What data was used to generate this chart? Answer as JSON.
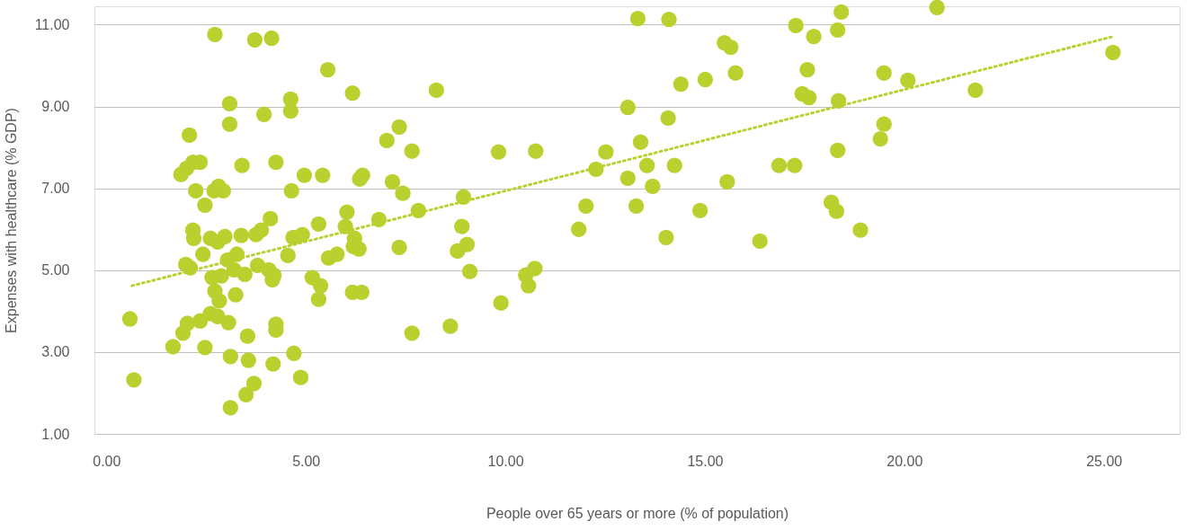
{
  "chart_data": {
    "type": "scatter",
    "xlabel": "People over 65 years or more (% of population)",
    "ylabel": "Expenses with healthcare (% GDP)",
    "xlim": [
      -0.3,
      26.9
    ],
    "ylim": [
      1,
      11.45
    ],
    "xticks": [
      {
        "value": 0,
        "label": "0.00"
      },
      {
        "value": 5,
        "label": "5.00"
      },
      {
        "value": 10,
        "label": "10.00"
      },
      {
        "value": 15,
        "label": "15.00"
      },
      {
        "value": 20,
        "label": "20.00"
      },
      {
        "value": 25,
        "label": "25.00"
      }
    ],
    "yticks": [
      {
        "value": 1,
        "label": "1.00"
      },
      {
        "value": 3,
        "label": "3.00"
      },
      {
        "value": 5,
        "label": "5.00"
      },
      {
        "value": 7,
        "label": "7.00"
      },
      {
        "value": 9,
        "label": "9.00"
      },
      {
        "value": 11,
        "label": "11.00"
      }
    ],
    "grid": "y",
    "series": [
      {
        "marker": "circle",
        "color": "#b9d02e",
        "x": [
          0.59,
          0.69,
          1.67,
          1.92,
          1.87,
          2.01,
          2.08,
          2.17,
          2.35,
          2.24,
          2.17,
          2.19,
          1.99,
          2.1,
          2.03,
          2.35,
          2.47,
          2.42,
          2.47,
          2.61,
          2.7,
          2.72,
          2.81,
          2.93,
          2.79,
          2.97,
          2.65,
          2.72,
          2.88,
          2.83,
          2.61,
          2.79,
          3.06,
          3.09,
          3.09,
          3.04,
          3.2,
          3.27,
          3.38,
          3.4,
          3.47,
          3.24,
          3.11,
          3.11,
          3.54,
          3.56,
          3.5,
          3.72,
          3.7,
          3.75,
          3.88,
          3.79,
          3.95,
          4.07,
          4.14,
          4.11,
          4.16,
          4.2,
          4.25,
          4.25,
          4.25,
          4.18,
          4.55,
          4.62,
          4.62,
          4.64,
          4.68,
          4.91,
          4.96,
          4.7,
          4.87,
          5.16,
          5.32,
          5.37,
          5.32,
          5.42,
          5.55,
          5.57,
          5.78,
          5.99,
          6.03,
          6.17,
          6.17,
          6.22,
          6.19,
          6.33,
          6.35,
          6.42,
          6.4,
          6.83,
          7.03,
          7.17,
          7.34,
          7.34,
          7.43,
          7.66,
          7.66,
          7.82,
          8.27,
          8.62,
          8.8,
          8.91,
          8.95,
          9.04,
          9.11,
          9.83,
          9.89,
          10.51,
          10.58,
          10.74,
          10.76,
          11.84,
          12.02,
          12.27,
          12.52,
          13.07,
          13.07,
          13.28,
          13.32,
          13.39,
          13.55,
          13.69,
          14.03,
          14.08,
          14.1,
          14.24,
          14.4,
          14.88,
          15.01,
          15.49,
          15.56,
          15.65,
          15.77,
          16.38,
          16.86,
          17.25,
          17.28,
          17.44,
          17.57,
          17.61,
          17.73,
          18.17,
          18.3,
          18.33,
          18.33,
          18.35,
          18.42,
          18.9,
          19.4,
          19.49,
          19.49,
          20.09,
          20.82,
          21.78,
          25.23
        ],
        "values": [
          3.81,
          2.32,
          3.13,
          3.46,
          7.34,
          7.49,
          8.3,
          7.64,
          7.64,
          6.94,
          5.98,
          5.78,
          5.14,
          5.06,
          3.7,
          3.76,
          3.11,
          5.39,
          6.59,
          5.78,
          6.94,
          10.76,
          7.05,
          6.94,
          5.69,
          5.82,
          4.82,
          4.49,
          4.86,
          4.25,
          3.94,
          3.87,
          3.72,
          9.07,
          8.57,
          5.25,
          5.01,
          5.39,
          5.85,
          7.56,
          4.9,
          4.4,
          2.89,
          1.64,
          3.39,
          2.8,
          1.96,
          10.63,
          2.23,
          5.87,
          5.98,
          5.12,
          8.81,
          5.01,
          10.67,
          6.26,
          4.77,
          4.88,
          7.64,
          3.68,
          3.54,
          2.71,
          5.36,
          9.18,
          8.89,
          6.94,
          5.8,
          5.87,
          7.32,
          2.97,
          2.38,
          4.82,
          6.13,
          4.62,
          4.29,
          7.32,
          9.9,
          5.3,
          5.39,
          6.07,
          6.42,
          9.33,
          4.46,
          5.78,
          5.58,
          5.52,
          7.23,
          7.32,
          4.46,
          6.24,
          8.17,
          7.16,
          8.5,
          5.56,
          6.88,
          7.91,
          3.46,
          6.46,
          9.4,
          3.63,
          5.47,
          6.07,
          6.79,
          5.63,
          4.97,
          7.89,
          4.2,
          4.88,
          4.62,
          5.04,
          7.91,
          6.0,
          6.57,
          7.47,
          7.89,
          8.98,
          7.25,
          6.57,
          11.15,
          8.13,
          7.56,
          7.05,
          5.8,
          8.72,
          11.13,
          7.56,
          9.55,
          6.46,
          9.66,
          10.56,
          7.16,
          10.45,
          9.82,
          5.71,
          7.56,
          7.56,
          10.98,
          9.31,
          9.9,
          9.22,
          10.71,
          6.66,
          6.44,
          10.87,
          7.93,
          9.14,
          11.31,
          5.98,
          8.21,
          9.82,
          8.57,
          9.64,
          11.42,
          9.4,
          10.32
        ]
      },
      {
        "type": "line",
        "marker": "none",
        "color": "#b9d02e",
        "line_style": "dotted",
        "x": [
          0.64,
          25.23
        ],
        "values": [
          4.62,
          10.71
        ]
      }
    ]
  }
}
